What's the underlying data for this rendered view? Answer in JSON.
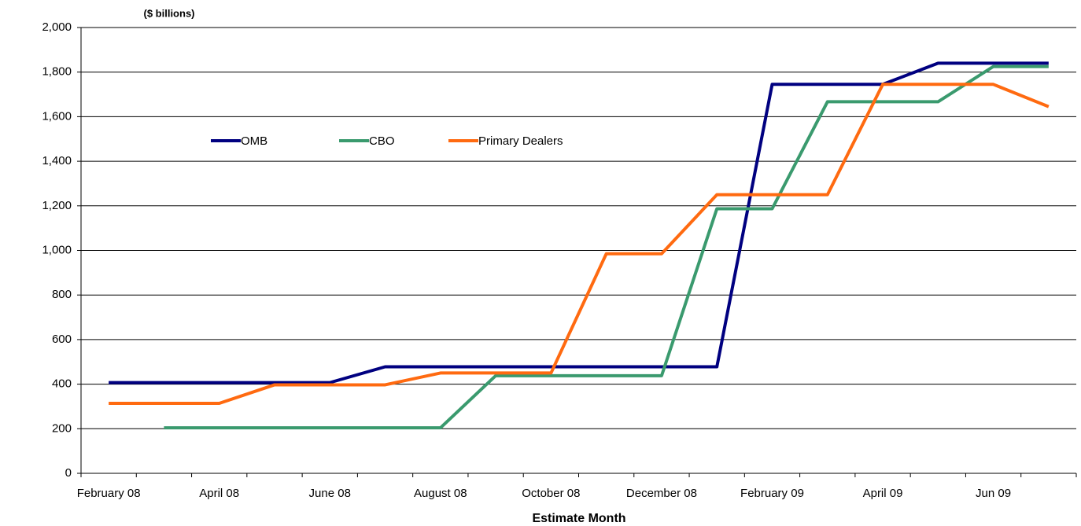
{
  "chart_data": {
    "type": "line",
    "y_axis_label": "($ billions)",
    "x_axis_label": "Estimate Month",
    "categories": [
      "February 08",
      null,
      "April 08",
      null,
      "June 08",
      null,
      "August 08",
      null,
      "October 08",
      null,
      "December 08",
      null,
      "February 09",
      null,
      "April 09",
      null,
      "Jun 09",
      null
    ],
    "series": [
      {
        "name": "OMB",
        "color": "#000080",
        "values": [
          407,
          407,
          407,
          407,
          407,
          478,
          478,
          478,
          478,
          478,
          478,
          478,
          1745,
          1745,
          1745,
          1840,
          1840,
          1840
        ]
      },
      {
        "name": "CBO",
        "color": "#3a9a6e",
        "values": [
          null,
          204,
          204,
          204,
          204,
          204,
          204,
          438,
          438,
          438,
          438,
          1187,
          1187,
          1667,
          1667,
          1667,
          1825,
          1825
        ]
      },
      {
        "name": "Primary Dealers",
        "color": "#ff6a10",
        "values": [
          314,
          314,
          314,
          397,
          397,
          397,
          450,
          450,
          450,
          985,
          985,
          1250,
          1250,
          1250,
          1745,
          1745,
          1745,
          1645
        ]
      }
    ],
    "ylim": [
      0,
      2000
    ],
    "yticks": [
      0,
      200,
      400,
      600,
      800,
      {
        "value": 1000,
        "label": "1,000"
      },
      {
        "value": 1200,
        "label": "1,200"
      },
      {
        "value": 1400,
        "label": "1,400"
      },
      {
        "value": 1600,
        "label": "1,600"
      },
      {
        "value": 1800,
        "label": "1,800"
      },
      {
        "value": 2000,
        "label": "2,000"
      }
    ],
    "grid": true
  }
}
